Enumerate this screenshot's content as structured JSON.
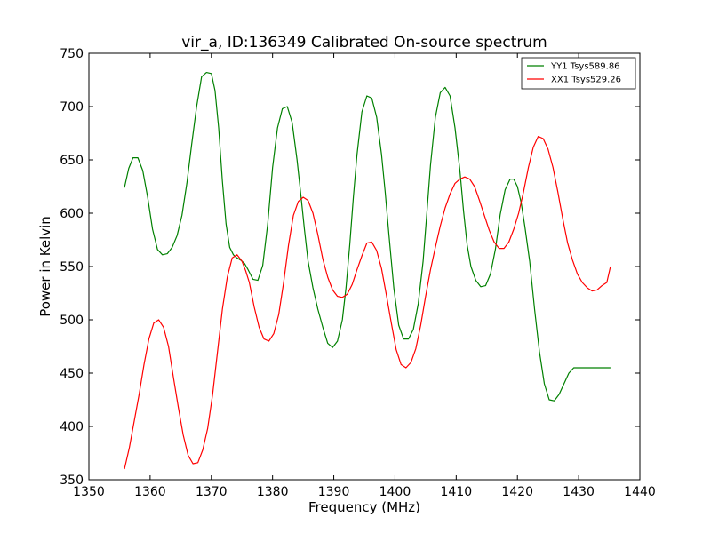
{
  "chart_data": {
    "type": "line",
    "title": "vir_a, ID:136349 Calibrated On-source spectrum",
    "xlabel": "Frequency (MHz)",
    "ylabel": "Power in Kelvin",
    "xlim": [
      1350,
      1440
    ],
    "ylim": [
      350,
      750
    ],
    "x_ticks": [
      "1350",
      "1360",
      "1370",
      "1380",
      "1390",
      "1400",
      "1410",
      "1420",
      "1430",
      "1440"
    ],
    "y_ticks": [
      "350",
      "400",
      "450",
      "500",
      "550",
      "600",
      "650",
      "700",
      "750"
    ],
    "grid": false,
    "legend_position": "top-right",
    "series": [
      {
        "name": "YY1 Tsys589.86",
        "color": "#008000",
        "x": [
          1355.8,
          1356.5,
          1357.2,
          1358.0,
          1358.8,
          1359.6,
          1360.4,
          1361.2,
          1362.0,
          1362.8,
          1363.6,
          1364.4,
          1365.2,
          1366.0,
          1366.8,
          1367.6,
          1368.4,
          1369.2,
          1370.0,
          1370.6,
          1371.2,
          1371.8,
          1372.4,
          1373.0,
          1373.6,
          1374.2,
          1374.8,
          1375.4,
          1376.0,
          1376.8,
          1377.6,
          1378.4,
          1379.2,
          1380.0,
          1380.8,
          1381.6,
          1382.4,
          1383.2,
          1384.0,
          1384.6,
          1385.2,
          1385.8,
          1386.6,
          1387.4,
          1388.2,
          1389.0,
          1389.8,
          1390.6,
          1391.4,
          1392.0,
          1392.6,
          1393.2,
          1393.8,
          1394.6,
          1395.4,
          1396.2,
          1397.0,
          1397.8,
          1398.4,
          1399.0,
          1399.8,
          1400.6,
          1401.4,
          1402.2,
          1403.0,
          1403.8,
          1404.6,
          1405.2,
          1405.8,
          1406.6,
          1407.4,
          1408.2,
          1409.0,
          1409.8,
          1410.6,
          1411.2,
          1411.8,
          1412.4,
          1413.2,
          1414.0,
          1414.8,
          1415.6,
          1416.4,
          1417.2,
          1418.0,
          1418.8,
          1419.4,
          1420.0,
          1420.6,
          1421.2,
          1422.0,
          1422.8,
          1423.6,
          1424.4,
          1425.2,
          1426.0,
          1426.8,
          1427.6,
          1428.4,
          1429.2,
          1430.0,
          1430.8,
          1431.6,
          1432.2,
          1432.8,
          1433.6,
          1434.4,
          1435.2
        ],
        "y": [
          624,
          642,
          652,
          652,
          640,
          615,
          585,
          566,
          561,
          562,
          568,
          579,
          598,
          628,
          665,
          700,
          728,
          732,
          731,
          715,
          680,
          630,
          590,
          568,
          561,
          558,
          556,
          553,
          547,
          538,
          537,
          551,
          590,
          643,
          680,
          698,
          700,
          685,
          650,
          618,
          585,
          555,
          530,
          510,
          493,
          478,
          474,
          480,
          500,
          530,
          570,
          615,
          655,
          695,
          710,
          708,
          690,
          655,
          620,
          580,
          530,
          495,
          482,
          482,
          491,
          515,
          555,
          600,
          645,
          690,
          713,
          718,
          710,
          680,
          640,
          602,
          570,
          550,
          537,
          531,
          532,
          543,
          566,
          599,
          622,
          632,
          632,
          625,
          610,
          588,
          555,
          510,
          470,
          440,
          425,
          424,
          430,
          440,
          450,
          455,
          455,
          455,
          455,
          455,
          455,
          455,
          455,
          455
        ]
      },
      {
        "name": "XX1 Tsys529.26",
        "color": "#ff0000",
        "x": [
          1355.8,
          1356.6,
          1357.4,
          1358.2,
          1359.0,
          1359.8,
          1360.6,
          1361.4,
          1362.2,
          1363.0,
          1363.8,
          1364.6,
          1365.4,
          1366.2,
          1367.0,
          1367.8,
          1368.6,
          1369.4,
          1370.2,
          1371.0,
          1371.8,
          1372.6,
          1373.4,
          1374.2,
          1375.0,
          1375.6,
          1376.2,
          1377.0,
          1377.8,
          1378.6,
          1379.4,
          1380.2,
          1381.0,
          1381.8,
          1382.6,
          1383.4,
          1384.2,
          1385.0,
          1385.8,
          1386.6,
          1387.4,
          1388.2,
          1389.0,
          1389.8,
          1390.6,
          1391.4,
          1392.2,
          1393.0,
          1393.8,
          1394.6,
          1395.4,
          1396.2,
          1397.0,
          1397.8,
          1398.6,
          1399.4,
          1400.2,
          1401.0,
          1401.8,
          1402.6,
          1403.4,
          1404.2,
          1405.0,
          1405.8,
          1406.6,
          1407.4,
          1408.2,
          1409.0,
          1409.8,
          1410.6,
          1411.4,
          1412.2,
          1413.0,
          1413.8,
          1414.6,
          1415.4,
          1416.2,
          1417.0,
          1417.8,
          1418.6,
          1419.4,
          1420.2,
          1421.0,
          1421.8,
          1422.6,
          1423.4,
          1424.2,
          1425.0,
          1425.8,
          1426.6,
          1427.4,
          1428.2,
          1429.0,
          1429.8,
          1430.6,
          1431.4,
          1432.2,
          1433.0,
          1433.8,
          1434.6,
          1435.2
        ],
        "y": [
          360,
          380,
          405,
          430,
          458,
          482,
          497,
          500,
          493,
          475,
          446,
          418,
          392,
          373,
          365,
          366,
          378,
          398,
          430,
          470,
          510,
          540,
          558,
          561,
          555,
          546,
          535,
          512,
          493,
          482,
          480,
          487,
          505,
          535,
          570,
          598,
          611,
          615,
          612,
          600,
          580,
          557,
          540,
          528,
          522,
          521,
          524,
          533,
          547,
          560,
          572,
          573,
          565,
          548,
          523,
          497,
          472,
          458,
          455,
          460,
          473,
          495,
          522,
          547,
          568,
          588,
          605,
          618,
          628,
          632,
          634,
          632,
          625,
          612,
          598,
          584,
          573,
          567,
          567,
          573,
          585,
          600,
          620,
          643,
          662,
          672,
          670,
          660,
          643,
          620,
          595,
          572,
          556,
          543,
          535,
          530,
          527,
          528,
          532,
          535,
          550
        ]
      }
    ]
  }
}
